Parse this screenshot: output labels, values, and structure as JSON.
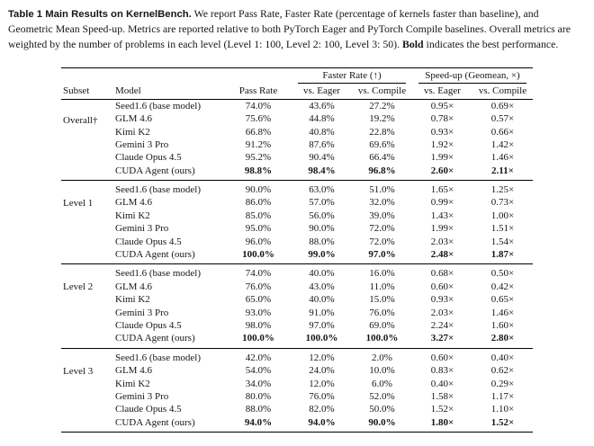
{
  "caption": {
    "label_title": "Table 1  Main Results on KernelBench.",
    "body": " We report Pass Rate, Faster Rate (percentage of kernels faster than baseline), and Geometric Mean Speed-up. Metrics are reported relative to both PyTorch Eager and PyTorch Compile baselines. Overall metrics are weighted by the number of problems in each level (Level 1: 100, Level 2: 100, Level 3: 50). ",
    "bold_word": "Bold",
    "tail": " indicates the best performance."
  },
  "table": {
    "span_headers": [
      {
        "label": "Faster Rate (↑)"
      },
      {
        "label": "Speed-up (Geomean, ×)"
      }
    ],
    "columns": [
      "Subset",
      "Model",
      "Pass Rate",
      "vs. Eager",
      "vs. Compile",
      "vs. Eager",
      "vs. Compile"
    ],
    "groups": [
      {
        "subset": "Overall†",
        "rows": [
          {
            "model": "Seed1.6 (base model)",
            "values": [
              "74.0%",
              "43.6%",
              "27.2%",
              "0.95×",
              "0.69×"
            ],
            "bold": false
          },
          {
            "model": "GLM 4.6",
            "values": [
              "75.6%",
              "44.8%",
              "19.2%",
              "0.78×",
              "0.57×"
            ],
            "bold": false
          },
          {
            "model": "Kimi K2",
            "values": [
              "66.8%",
              "40.8%",
              "22.8%",
              "0.93×",
              "0.66×"
            ],
            "bold": false
          },
          {
            "model": "Gemini 3 Pro",
            "values": [
              "91.2%",
              "87.6%",
              "69.6%",
              "1.92×",
              "1.42×"
            ],
            "bold": false
          },
          {
            "model": "Claude Opus 4.5",
            "values": [
              "95.2%",
              "90.4%",
              "66.4%",
              "1.99×",
              "1.46×"
            ],
            "bold": false
          },
          {
            "model": "CUDA Agent (ours)",
            "values": [
              "98.8%",
              "98.4%",
              "96.8%",
              "2.60×",
              "2.11×"
            ],
            "bold": true
          }
        ]
      },
      {
        "subset": "Level 1",
        "rows": [
          {
            "model": "Seed1.6 (base model)",
            "values": [
              "90.0%",
              "63.0%",
              "51.0%",
              "1.65×",
              "1.25×"
            ],
            "bold": false
          },
          {
            "model": "GLM 4.6",
            "values": [
              "86.0%",
              "57.0%",
              "32.0%",
              "0.99×",
              "0.73×"
            ],
            "bold": false
          },
          {
            "model": "Kimi K2",
            "values": [
              "85.0%",
              "56.0%",
              "39.0%",
              "1.43×",
              "1.00×"
            ],
            "bold": false
          },
          {
            "model": "Gemini 3 Pro",
            "values": [
              "95.0%",
              "90.0%",
              "72.0%",
              "1.99×",
              "1.51×"
            ],
            "bold": false
          },
          {
            "model": "Claude Opus 4.5",
            "values": [
              "96.0%",
              "88.0%",
              "72.0%",
              "2.03×",
              "1.54×"
            ],
            "bold": false
          },
          {
            "model": "CUDA Agent (ours)",
            "values": [
              "100.0%",
              "99.0%",
              "97.0%",
              "2.48×",
              "1.87×"
            ],
            "bold": true
          }
        ]
      },
      {
        "subset": "Level 2",
        "rows": [
          {
            "model": "Seed1.6 (base model)",
            "values": [
              "74.0%",
              "40.0%",
              "16.0%",
              "0.68×",
              "0.50×"
            ],
            "bold": false
          },
          {
            "model": "GLM 4.6",
            "values": [
              "76.0%",
              "43.0%",
              "11.0%",
              "0.60×",
              "0.42×"
            ],
            "bold": false
          },
          {
            "model": "Kimi K2",
            "values": [
              "65.0%",
              "40.0%",
              "15.0%",
              "0.93×",
              "0.65×"
            ],
            "bold": false
          },
          {
            "model": "Gemini 3 Pro",
            "values": [
              "93.0%",
              "91.0%",
              "76.0%",
              "2.03×",
              "1.46×"
            ],
            "bold": false
          },
          {
            "model": "Claude Opus 4.5",
            "values": [
              "98.0%",
              "97.0%",
              "69.0%",
              "2.24×",
              "1.60×"
            ],
            "bold": false
          },
          {
            "model": "CUDA Agent (ours)",
            "values": [
              "100.0%",
              "100.0%",
              "100.0%",
              "3.27×",
              "2.80×"
            ],
            "bold": true
          }
        ]
      },
      {
        "subset": "Level 3",
        "rows": [
          {
            "model": "Seed1.6 (base model)",
            "values": [
              "42.0%",
              "12.0%",
              "2.0%",
              "0.60×",
              "0.40×"
            ],
            "bold": false
          },
          {
            "model": "GLM 4.6",
            "values": [
              "54.0%",
              "24.0%",
              "10.0%",
              "0.83×",
              "0.62×"
            ],
            "bold": false
          },
          {
            "model": "Kimi K2",
            "values": [
              "34.0%",
              "12.0%",
              "6.0%",
              "0.40×",
              "0.29×"
            ],
            "bold": false
          },
          {
            "model": "Gemini 3 Pro",
            "values": [
              "80.0%",
              "76.0%",
              "52.0%",
              "1.58×",
              "1.17×"
            ],
            "bold": false
          },
          {
            "model": "Claude Opus 4.5",
            "values": [
              "88.0%",
              "82.0%",
              "50.0%",
              "1.52×",
              "1.10×"
            ],
            "bold": false
          },
          {
            "model": "CUDA Agent (ours)",
            "values": [
              "94.0%",
              "94.0%",
              "90.0%",
              "1.80×",
              "1.52×"
            ],
            "bold": true
          }
        ]
      }
    ]
  }
}
